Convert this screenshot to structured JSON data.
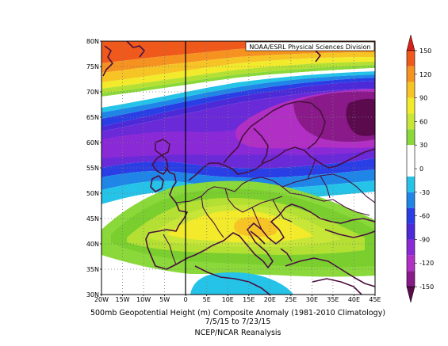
{
  "credit": "NOAA/ESRL Physical Sciences Division",
  "caption": {
    "line1": "500mb Geopotential Height (m) Composite Anomaly (1981-2010 Climatology)",
    "line2": "7/5/15  to 7/23/15",
    "line3": "NCEP/NCAR Reanalysis"
  },
  "lat_labels": [
    "30N",
    "35N",
    "40N",
    "45N",
    "50N",
    "55N",
    "60N",
    "65N",
    "70N",
    "75N",
    "80N"
  ],
  "lon_labels": [
    "20W",
    "15W",
    "10W",
    "5W",
    "0",
    "5E",
    "10E",
    "15E",
    "20E",
    "25E",
    "30E",
    "35E",
    "40E",
    "45E"
  ],
  "colorbar": {
    "tick_labels": [
      "-150",
      "-120",
      "-90",
      "-60",
      "-30",
      "0",
      "30",
      "60",
      "90",
      "120",
      "150"
    ],
    "colors": [
      "#5c0a4e",
      "#8a1a8a",
      "#b12fc4",
      "#8a2ad7",
      "#4d2ad8",
      "#2a3ee6",
      "#1f86e8",
      "#25c3e8",
      "#ffffff",
      "#ffffff",
      "#8ad83a",
      "#c8e638",
      "#f2ea2a",
      "#f7c425",
      "#f59220",
      "#ef5a1c",
      "#d6201a"
    ]
  },
  "anomaly_bands": {
    "colors": {
      "n150": "#5c0a4e",
      "n120": "#8a1a8a",
      "n105": "#b12fc4",
      "n90": "#8a2ad7",
      "n75": "#6a2ad8",
      "n60": "#4d2ad8",
      "n45": "#2a3ee6",
      "n30": "#1f86e8",
      "n15": "#25c3e8",
      "zero": "#ffffff",
      "p15": "#8ad83a",
      "p30": "#7acf2e",
      "p45": "#b4e034",
      "p60": "#c8e638",
      "p75": "#f2ea2a",
      "p90": "#f7c425",
      "p105": "#f59220",
      "p120": "#ef5a1c",
      "p150": "#d6201a"
    }
  }
}
